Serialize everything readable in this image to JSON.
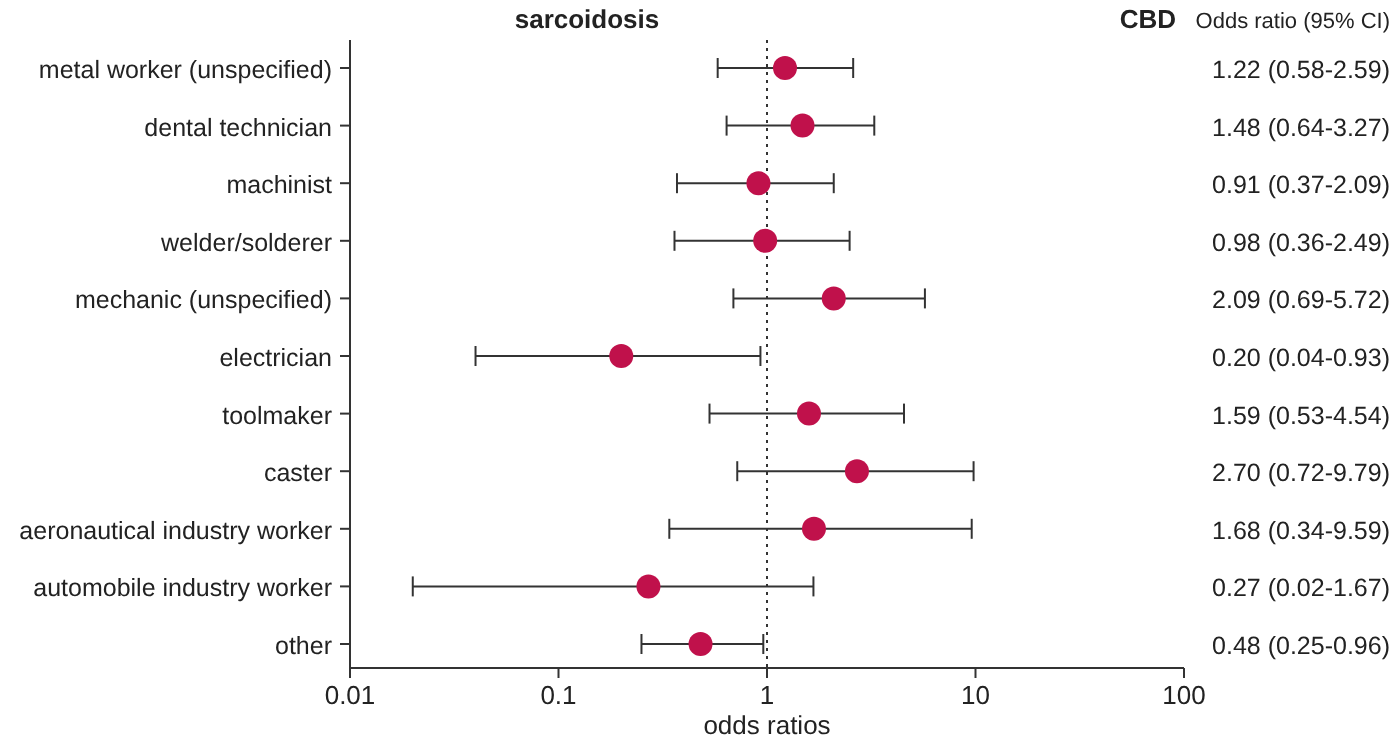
{
  "chart_data": {
    "type": "scatter",
    "orientation": "horizontal",
    "categories": [
      "metal worker (unspecified)",
      "dental technician",
      "machinist",
      "welder/solderer",
      "mechanic (unspecified)",
      "electrician",
      "toolmaker",
      "caster",
      "aeronautical industry worker",
      "automobile industry worker",
      "other"
    ],
    "values": [
      1.22,
      1.48,
      0.91,
      0.98,
      2.09,
      0.2,
      1.59,
      2.7,
      1.68,
      0.27,
      0.48
    ],
    "errors": [
      [
        0.58,
        2.59
      ],
      [
        0.64,
        3.27
      ],
      [
        0.37,
        2.09
      ],
      [
        0.36,
        2.49
      ],
      [
        0.69,
        5.72
      ],
      [
        0.04,
        0.93
      ],
      [
        0.53,
        4.54
      ],
      [
        0.72,
        9.79
      ],
      [
        0.34,
        9.59
      ],
      [
        0.02,
        1.67
      ],
      [
        0.25,
        0.96
      ]
    ],
    "value_labels": [
      "1.22 (0.58-2.59)",
      "1.48 (0.64-3.27)",
      "0.91 (0.37-2.09)",
      "0.98 (0.36-2.49)",
      "2.09 (0.69-5.72)",
      "0.20 (0.04-0.93)",
      "1.59 (0.53-4.54)",
      "2.70 (0.72-9.79)",
      "1.68 (0.34-9.59)",
      "0.27 (0.02-1.67)",
      "0.48 (0.25-0.96)"
    ],
    "color": "#c0114b",
    "marker": "circle",
    "log": "x",
    "xlim": [
      0.01,
      100
    ],
    "xticks": [
      0.01,
      0.1,
      1,
      10,
      100
    ],
    "xlabel": "odds ratios",
    "ref_lines": [
      {
        "axis": "x",
        "value": 1,
        "line_style": "dotted"
      }
    ],
    "annotations": [
      "sarcoidosis",
      "CBD",
      "Odds ratio (95% CI)"
    ]
  }
}
